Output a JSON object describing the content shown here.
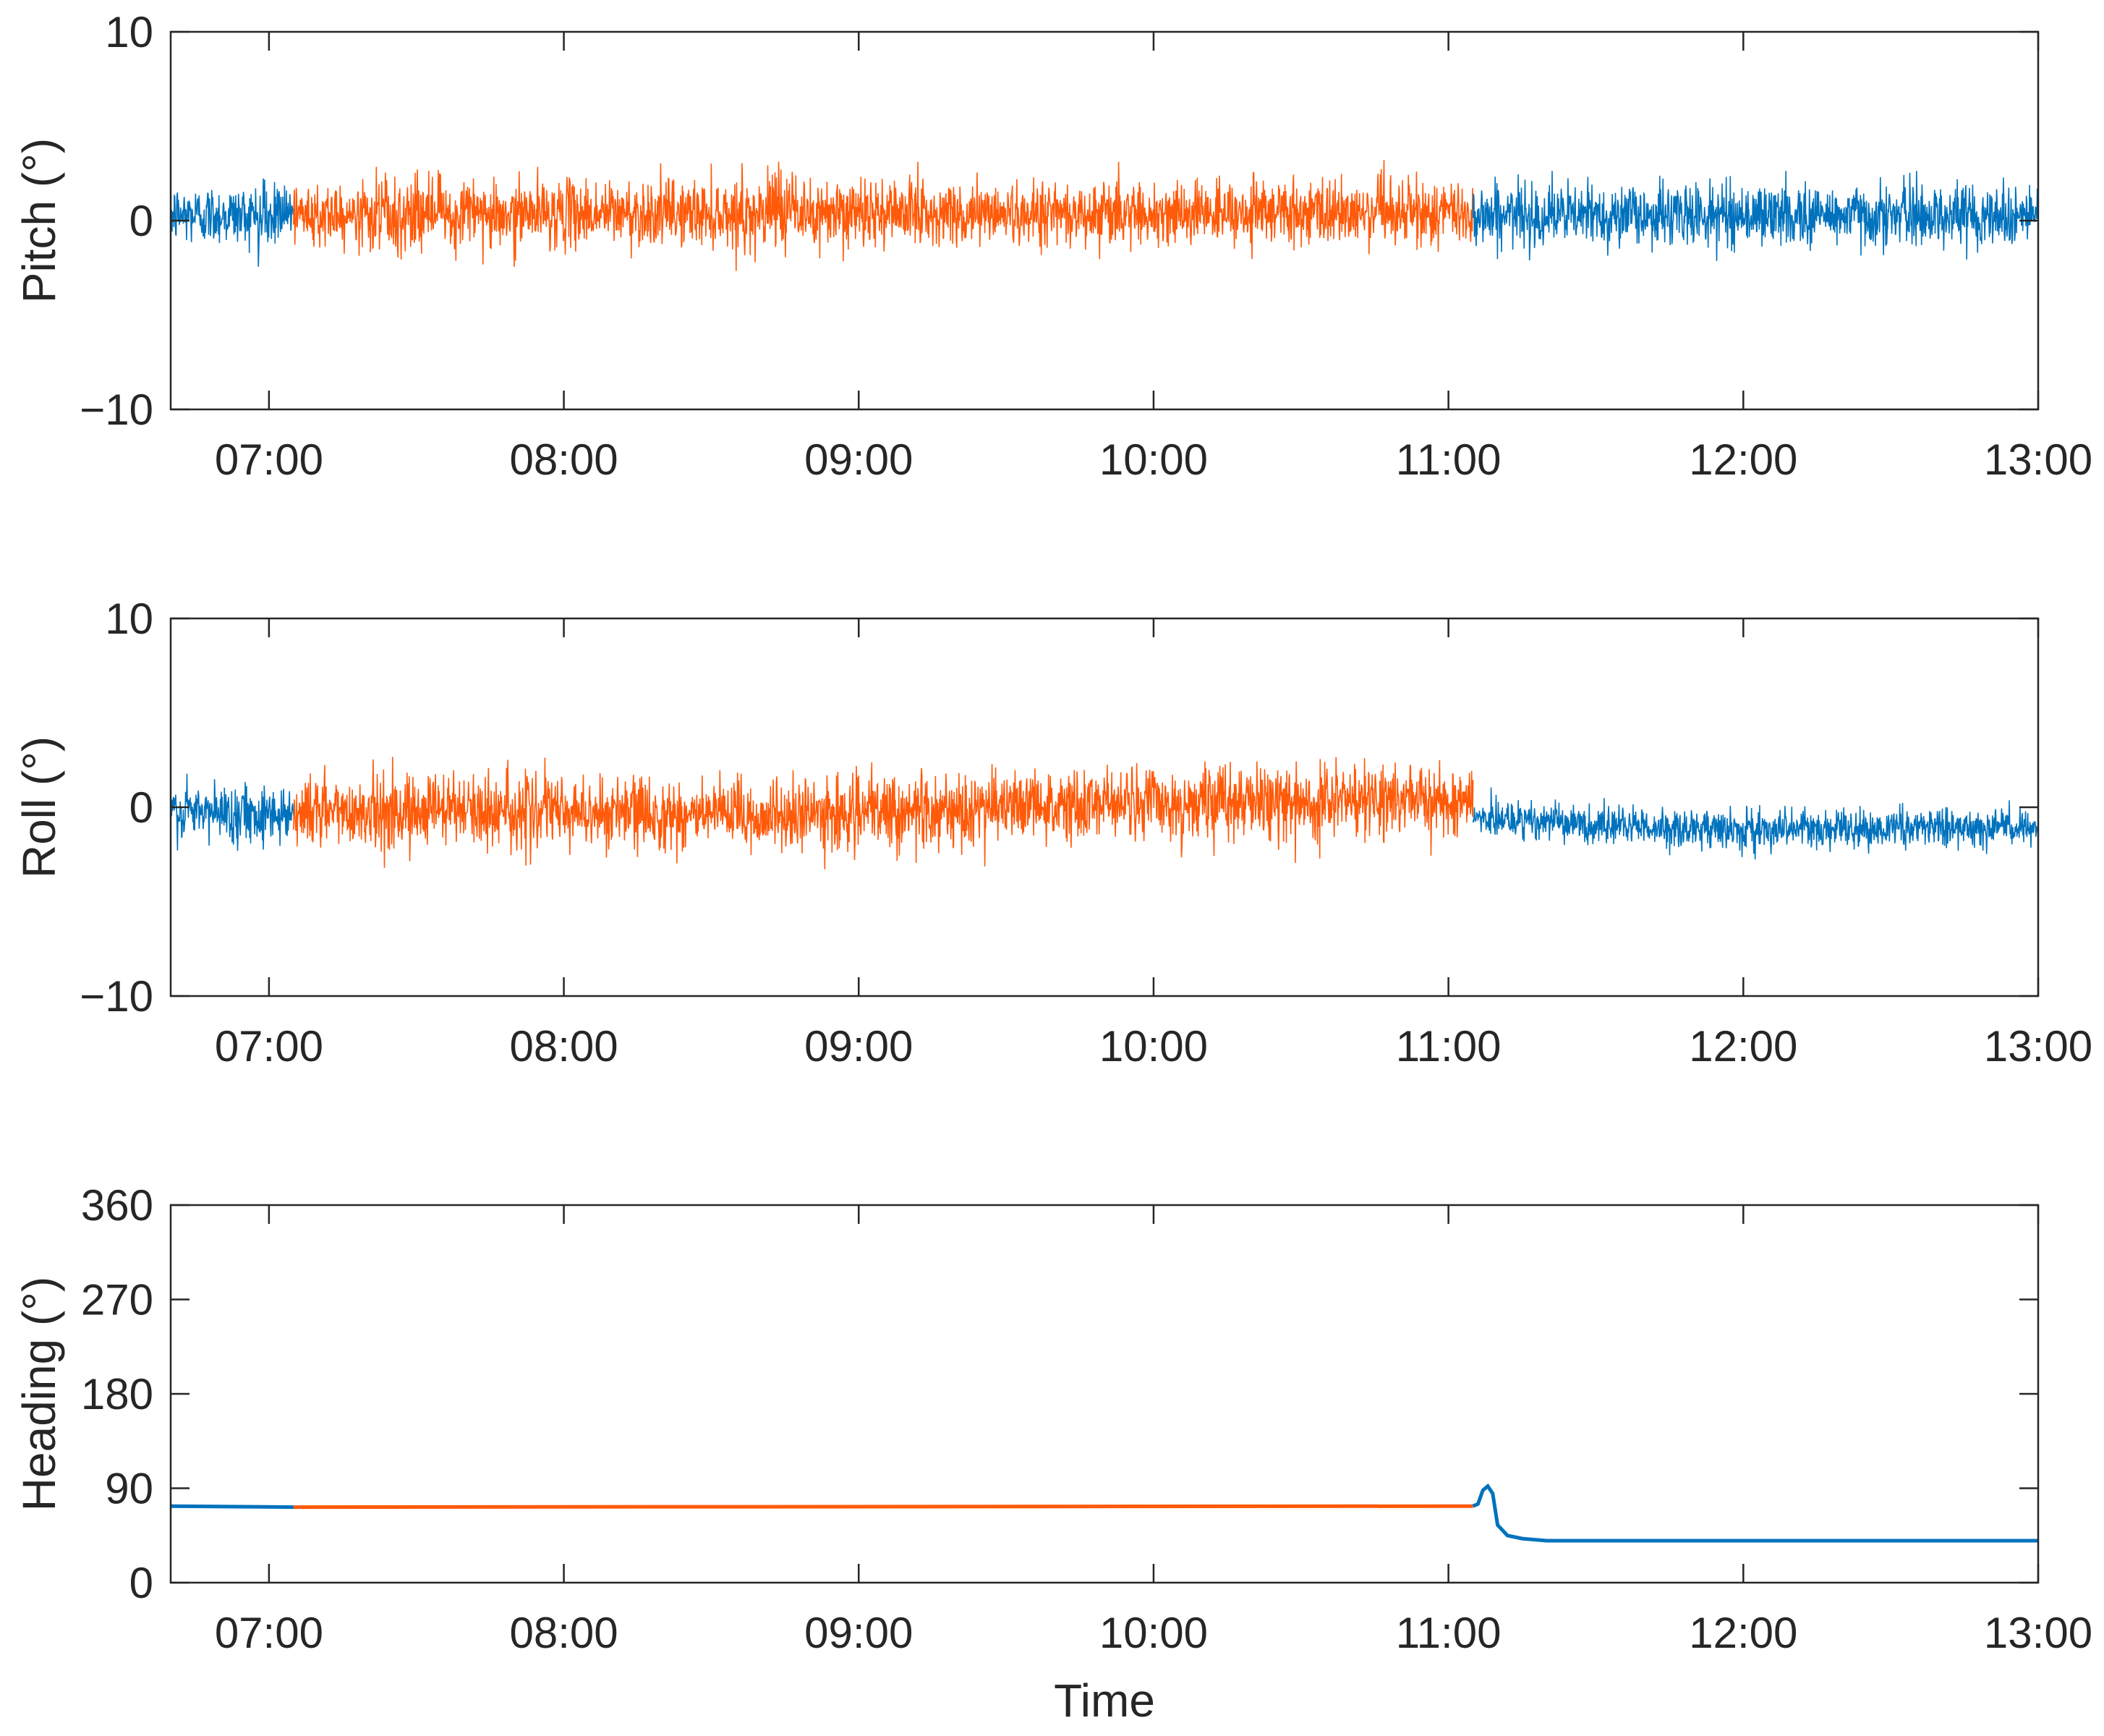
{
  "chart_data": [
    {
      "type": "line",
      "ylabel": "Pitch (°)",
      "xlabel": "",
      "x_range": [
        "06:40",
        "13:00"
      ],
      "ylim": [
        -10,
        10
      ],
      "yticks": [
        -10,
        0,
        10
      ],
      "ytick_labels": [
        "−10",
        "0",
        "10"
      ],
      "xticks": [
        "07:00",
        "08:00",
        "09:00",
        "10:00",
        "11:00",
        "12:00",
        "13:00"
      ],
      "grid": false,
      "series": [
        {
          "segment": "before",
          "color": "#0072BD",
          "x_range": [
            "06:40",
            "07:05"
          ],
          "mean": 0.3,
          "spread": 2.5,
          "min": -2.8,
          "max": 3.0
        },
        {
          "segment": "during",
          "color": "#FF5A0A",
          "x_range": [
            "07:05",
            "11:05"
          ],
          "mean": 0.4,
          "spread": 2.8,
          "min": -2.7,
          "max": 3.5
        },
        {
          "segment": "after",
          "color": "#0072BD",
          "x_range": [
            "11:05",
            "13:00"
          ],
          "mean": 0.3,
          "spread": 2.6,
          "min": -3.0,
          "max": 3.3
        }
      ]
    },
    {
      "type": "line",
      "ylabel": "Roll (°)",
      "xlabel": "",
      "x_range": [
        "06:40",
        "13:00"
      ],
      "ylim": [
        -10,
        10
      ],
      "yticks": [
        -10,
        0,
        10
      ],
      "ytick_labels": [
        "−10",
        "0",
        "10"
      ],
      "xticks": [
        "07:00",
        "08:00",
        "09:00",
        "10:00",
        "11:00",
        "12:00",
        "13:00"
      ],
      "grid": false,
      "series": [
        {
          "segment": "before",
          "color": "#0072BD",
          "x_range": [
            "06:40",
            "07:05"
          ],
          "mean": -0.3,
          "spread": 2.4,
          "min": -3.2,
          "max": 2.2
        },
        {
          "segment": "during",
          "color": "#FF5A0A",
          "x_range": [
            "07:05",
            "11:05"
          ],
          "mean": [
            -0.2,
            -0.2,
            -0.5,
            0.0,
            0.3,
            0.5
          ],
          "spread": 3.0,
          "min": -3.3,
          "max": 2.7
        },
        {
          "segment": "after",
          "color": "#0072BD",
          "x_range": [
            "11:05",
            "13:00"
          ],
          "mean": [
            -0.6,
            -1.0,
            -1.2,
            -1.1,
            -1.0
          ],
          "spread": 1.6,
          "min": -3.5,
          "max": 2.5
        }
      ]
    },
    {
      "type": "line",
      "ylabel": "Heading (°)",
      "xlabel": "Time",
      "x_range": [
        "06:40",
        "13:00"
      ],
      "ylim": [
        0,
        360
      ],
      "yticks": [
        0,
        90,
        180,
        270,
        360
      ],
      "ytick_labels": [
        "0",
        "90",
        "180",
        "270",
        "360"
      ],
      "xticks": [
        "07:00",
        "08:00",
        "09:00",
        "10:00",
        "11:00",
        "12:00",
        "13:00"
      ],
      "grid": false,
      "series": [
        {
          "segment": "before",
          "color": "#0072BD",
          "x_range": [
            "06:40",
            "07:05"
          ],
          "values": [
            [
              "06:40",
              73
            ],
            [
              "07:05",
              72
            ]
          ]
        },
        {
          "segment": "during",
          "color": "#FF5A0A",
          "x_range": [
            "07:05",
            "11:05"
          ],
          "values": [
            [
              "07:05",
              72
            ],
            [
              "11:05",
              73
            ]
          ]
        },
        {
          "segment": "after",
          "color": "#0072BD",
          "x_range": [
            "11:05",
            "13:00"
          ],
          "values": [
            [
              "11:05",
              73
            ],
            [
              "11:06",
              75
            ],
            [
              "11:07",
              88
            ],
            [
              "11:08",
              92
            ],
            [
              "11:09",
              85
            ],
            [
              "11:10",
              55
            ],
            [
              "11:12",
              45
            ],
            [
              "11:15",
              42
            ],
            [
              "11:20",
              40
            ],
            [
              "13:00",
              40
            ]
          ]
        }
      ]
    }
  ]
}
